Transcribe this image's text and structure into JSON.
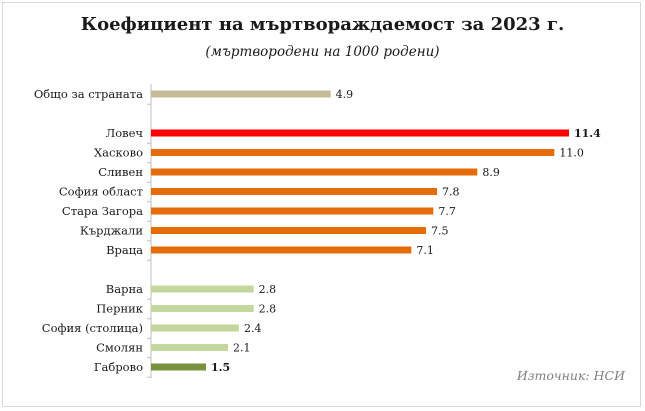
{
  "chart_data": {
    "type": "bar",
    "orientation": "horizontal",
    "title": "Коефициент на мъртвораждаемост за 2023 г.",
    "subtitle": "(мъртвородени на 1000 родени)",
    "source": "Източник: НСИ",
    "groups": [
      {
        "categories": [
          "Общо за страната"
        ],
        "values": [
          4.9
        ],
        "color": "#c4bd97"
      },
      {
        "categories": [
          "Ловеч",
          "Хасково",
          "Сливен",
          "София област",
          "Стара Загора",
          "Кърджали",
          "Враца"
        ],
        "values": [
          11.4,
          11.0,
          8.9,
          7.8,
          7.7,
          7.5,
          7.1
        ],
        "color": "#e46c0a",
        "highlight": {
          "index": 0,
          "color": "#ff0000",
          "bold": true
        }
      },
      {
        "categories": [
          "Варна",
          "Перник",
          "София (столица)",
          "Смолян",
          "Габрово"
        ],
        "values": [
          2.8,
          2.8,
          2.4,
          2.1,
          1.5
        ],
        "color": "#c3d69b",
        "highlight": {
          "index": 4,
          "color": "#77933c",
          "bold": true
        }
      }
    ],
    "value_labels": [
      "4.9",
      "11.4",
      "11.0",
      "8.9",
      "7.8",
      "7.7",
      "7.5",
      "7.1",
      "2.8",
      "2.8",
      "2.4",
      "2.1",
      "1.5"
    ],
    "xlim": [
      0,
      11.4
    ],
    "grid": false,
    "legend": "none"
  }
}
